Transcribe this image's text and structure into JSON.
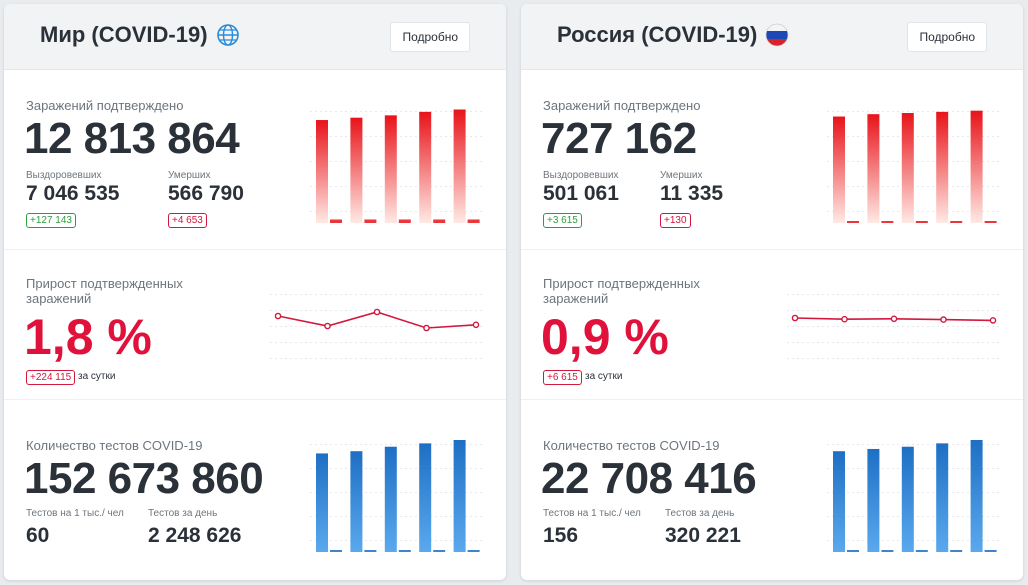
{
  "cards": [
    {
      "title": "Мир (COVID-19)",
      "icon": "globe-icon",
      "details_label": "Подробно",
      "confirmed_label": "Заражений подтверждено",
      "confirmed": "12 813 864",
      "recovered_label": "Выздоровевших",
      "recovered": "7 046 535",
      "recovered_delta": "+127 143",
      "deaths_label": "Умерших",
      "deaths": "566 790",
      "deaths_delta": "+4 653",
      "growth_label_1": "Прирост подтвержденных",
      "growth_label_2": "заражений",
      "growth_pct": "1,8 %",
      "growth_delta": "+224 115",
      "per_day_label": "за сутки",
      "tests_label": "Количество тестов COVID-19",
      "tests": "152 673 860",
      "tests_per_1k_label": "Тестов на 1 тыс./ чел",
      "tests_per_1k": "60",
      "tests_per_day_label": "Тестов за день",
      "tests_per_day": "2 248 626"
    },
    {
      "title": "Россия (COVID-19)",
      "icon": "russia-flag-icon",
      "details_label": "Подробно",
      "confirmed_label": "Заражений подтверждено",
      "confirmed": "727 162",
      "recovered_label": "Выздоровевших",
      "recovered": "501 061",
      "recovered_delta": "+3 615",
      "deaths_label": "Умерших",
      "deaths": "11 335",
      "deaths_delta": "+130",
      "growth_label_1": "Прирост подтвержденных",
      "growth_label_2": "заражений",
      "growth_pct": "0,9 %",
      "growth_delta": "+6 615",
      "per_day_label": "за сутки",
      "tests_label": "Количество тестов COVID-19",
      "tests": "22 708 416",
      "tests_per_1k_label": "Тестов на 1 тыс./ чел",
      "tests_per_1k": "156",
      "tests_per_day_label": "Тестов за день",
      "tests_per_day": "320 221"
    }
  ],
  "chart_data": [
    {
      "card": 0,
      "type": "bar",
      "name": "confirmed",
      "values": [
        0.88,
        0.9,
        0.92,
        0.95,
        0.97
      ],
      "small_values": [
        0.03,
        0.03,
        0.03,
        0.03,
        0.03
      ],
      "colors": [
        "#e8131a",
        "#ffe9e4"
      ]
    },
    {
      "card": 0,
      "type": "line",
      "name": "growth",
      "values": [
        1.0,
        0.75,
        1.1,
        0.7,
        0.78
      ],
      "color": "#d3173d"
    },
    {
      "card": 0,
      "type": "bar",
      "name": "tests",
      "values": [
        0.88,
        0.9,
        0.94,
        0.97,
        1.0
      ],
      "small_values": [
        0.01,
        0.01,
        0.01,
        0.01,
        0.01
      ],
      "colors": [
        "#1e6fc4",
        "#5aa9ee"
      ]
    },
    {
      "card": 1,
      "type": "bar",
      "name": "confirmed",
      "values": [
        0.91,
        0.93,
        0.94,
        0.95,
        0.96
      ],
      "small_values": [
        0.01,
        0.01,
        0.01,
        0.01,
        0.01
      ],
      "colors": [
        "#e8131a",
        "#ffe9e4"
      ]
    },
    {
      "card": 1,
      "type": "line",
      "name": "growth",
      "values": [
        0.95,
        0.92,
        0.93,
        0.91,
        0.89
      ],
      "color": "#d3173d"
    },
    {
      "card": 1,
      "type": "bar",
      "name": "tests",
      "values": [
        0.9,
        0.92,
        0.94,
        0.97,
        1.0
      ],
      "small_values": [
        0.01,
        0.01,
        0.01,
        0.01,
        0.01
      ],
      "colors": [
        "#1e6fc4",
        "#5aa9ee"
      ]
    }
  ]
}
